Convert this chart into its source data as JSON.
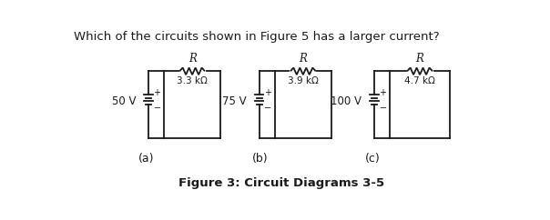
{
  "title": "Which of the circuits shown in Figure 5 has a larger current?",
  "caption": "Figure 3: Circuit Diagrams 3-5",
  "circuits": [
    {
      "label": "(a)",
      "voltage": "50 V",
      "resistance": "3.3 kΩ"
    },
    {
      "label": "(b)",
      "voltage": "75 V",
      "resistance": "3.9 kΩ"
    },
    {
      "label": "(c)",
      "voltage": "100 V",
      "resistance": "4.7 kΩ"
    }
  ],
  "bg_color": "#ffffff",
  "line_color": "#1a1a1a",
  "font_color": "#1a1a1a",
  "title_fontsize": 9.5,
  "caption_fontsize": 9.5,
  "circuit_label_fontsize": 9
}
